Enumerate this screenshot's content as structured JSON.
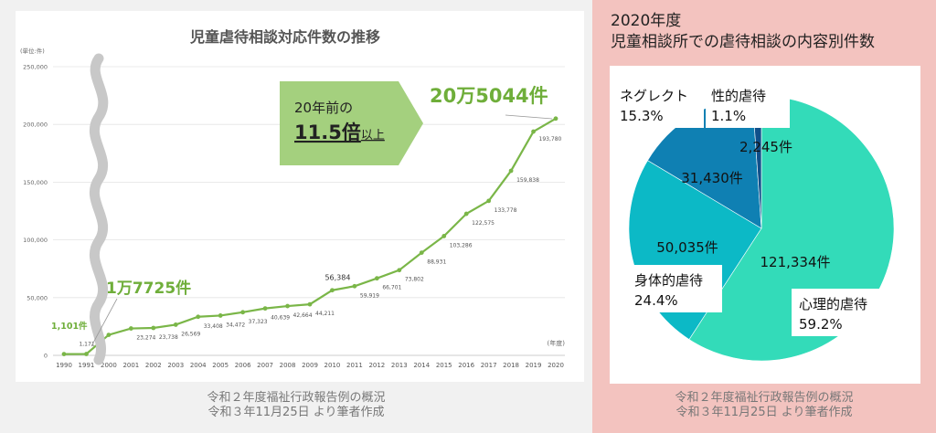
{
  "line_chart": {
    "title": "児童虐待相談対応件数の推移",
    "unit_label": "(単位:件)",
    "x_unit_label": "(年度)",
    "y_ticks": [
      "250,000",
      "200,000",
      "150,000",
      "100,000",
      "50,000",
      "0"
    ],
    "callout_first": "1,101件",
    "callout_1991": "1万7725件",
    "callout_last": "20万5044件",
    "arrow_line1": "20年前の",
    "arrow_big": "11.5倍",
    "arrow_small": "以上",
    "caption_line1": "令和２年度福祉行政報告例の概況",
    "caption_line2": "令和３年11月25日 より筆者作成"
  },
  "pie_chart": {
    "title_line1": "2020年度",
    "title_line2": "児童相談所での虐待相談の内容別件数",
    "caption_line1": "令和２年度福祉行政報告例の概況",
    "caption_line2": "令和３年11月25日 より筆者作成"
  },
  "chart_data": [
    {
      "type": "line",
      "title": "児童虐待相談対応件数の推移",
      "xlabel": "(年度)",
      "ylabel": "(単位:件)",
      "ylim": [
        0,
        250000
      ],
      "grid": true,
      "color": "#7ab648",
      "x": [
        "1990",
        "1991",
        "2000",
        "2001",
        "2002",
        "2003",
        "2004",
        "2005",
        "2006",
        "2007",
        "2008",
        "2009",
        "2010",
        "2011",
        "2012",
        "2013",
        "2014",
        "2015",
        "2016",
        "2017",
        "2018",
        "2019",
        "2020"
      ],
      "values": [
        1101,
        1171,
        17725,
        23274,
        23738,
        26569,
        33408,
        34472,
        37323,
        40639,
        42664,
        44211,
        56384,
        59919,
        66701,
        73802,
        88931,
        103286,
        122575,
        133778,
        159838,
        193780,
        205044
      ],
      "data_labels": [
        "",
        "1,171",
        "",
        "23,274",
        "23,738",
        "26,569",
        "33,408",
        "34,472",
        "37,323",
        "40,639",
        "42,664",
        "44,211",
        "56,384",
        "59,919",
        "66,701",
        "73,802",
        "88,931",
        "103,286",
        "122,575",
        "133,778",
        "159,838",
        "193,780",
        ""
      ]
    },
    {
      "type": "pie",
      "title": "2020年度 児童相談所での虐待相談の内容別件数",
      "slices": [
        {
          "name": "心理的虐待",
          "value": 121334,
          "count_label": "121,334件",
          "percent_label": "59.2%",
          "color": "#33dbb9"
        },
        {
          "name": "身体的虐待",
          "value": 50035,
          "count_label": "50,035件",
          "percent_label": "24.4%",
          "color": "#0cb9c6"
        },
        {
          "name": "ネグレクト",
          "value": 31430,
          "count_label": "31,430件",
          "percent_label": "15.3%",
          "color": "#0f80b3"
        },
        {
          "name": "性的虐待",
          "value": 2245,
          "count_label": "2,245件",
          "percent_label": "1.1%",
          "color": "#104f8a"
        }
      ]
    }
  ]
}
